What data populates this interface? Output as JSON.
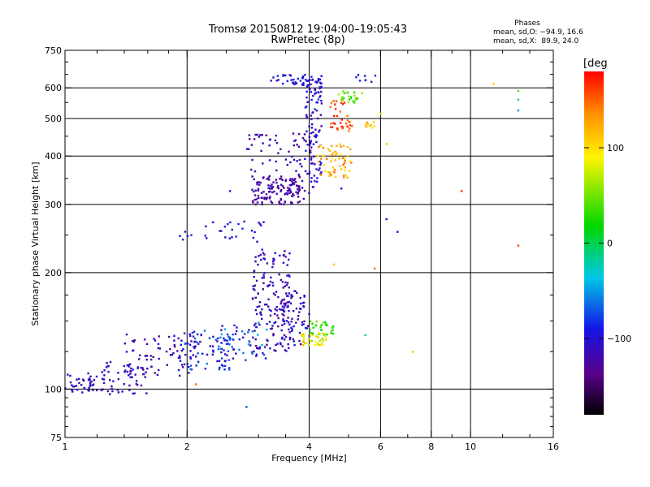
{
  "chart_data": {
    "type": "scatter",
    "title": "Tromsø 20150812 19:04:00–19:05:43",
    "subtitle": "RwPretec (8p)",
    "xlabel": "Frequency [MHz]",
    "ylabel": "Stationary phase Virtual Height [km]",
    "x_scale": "log",
    "y_scale": "log",
    "xlim": [
      1,
      16
    ],
    "ylim": [
      75,
      750
    ],
    "x_ticks": [
      1,
      2,
      4,
      6,
      8,
      10,
      16
    ],
    "x_tick_labels": [
      "1",
      "2",
      "4",
      "6",
      "8",
      "10",
      "16"
    ],
    "x_gridlines": [
      2,
      4,
      6,
      8,
      10
    ],
    "y_ticks": [
      75,
      100,
      200,
      300,
      400,
      500,
      600,
      750
    ],
    "y_tick_labels": [
      "75",
      "100",
      "200",
      "300",
      "400",
      "500",
      "600",
      "750"
    ],
    "y_gridlines": [
      100,
      200,
      300,
      400,
      500,
      600
    ],
    "grid": true,
    "colorbar": {
      "label": "[deg",
      "min": -180,
      "max": 180,
      "ticks": [
        100,
        0,
        -100
      ],
      "tick_labels": [
        "100",
        "0",
        "−100"
      ],
      "colormap": "rainbow"
    },
    "annotation": {
      "title": "Phases",
      "line1": "mean, sd,O: −94.9, 16.6",
      "line2": "mean, sd,X:  89.9, 24.0"
    },
    "clusters": [
      {
        "x": [
          1.0,
          1.18
        ],
        "y": [
          97,
          110
        ],
        "phase": [
          -120,
          -95
        ],
        "n": 35
      },
      {
        "x": [
          1.15,
          1.6
        ],
        "y": [
          97,
          118
        ],
        "phase": [
          -130,
          -100
        ],
        "n": 55
      },
      {
        "x": [
          1.4,
          2.1
        ],
        "y": [
          108,
          140
        ],
        "phase": [
          -135,
          -90
        ],
        "n": 75
      },
      {
        "x": [
          1.9,
          2.6
        ],
        "y": [
          112,
          142
        ],
        "phase": [
          -125,
          -60
        ],
        "n": 75
      },
      {
        "x": [
          2.4,
          3.2
        ],
        "y": [
          118,
          150
        ],
        "phase": [
          -115,
          -40
        ],
        "n": 55
      },
      {
        "x": [
          2.9,
          3.6
        ],
        "y": [
          125,
          230
        ],
        "phase": [
          -130,
          -95
        ],
        "n": 150
      },
      {
        "x": [
          3.4,
          4.0
        ],
        "y": [
          130,
          180
        ],
        "phase": [
          -130,
          -90
        ],
        "n": 70
      },
      {
        "x": [
          3.8,
          4.4
        ],
        "y": [
          130,
          140
        ],
        "phase": [
          60,
          120
        ],
        "n": 45
      },
      {
        "x": [
          4.0,
          4.6
        ],
        "y": [
          138,
          150
        ],
        "phase": [
          0,
          60
        ],
        "n": 30
      },
      {
        "x": [
          1.9,
          3.2
        ],
        "y": [
          240,
          272
        ],
        "phase": [
          -110,
          -80
        ],
        "n": 30
      },
      {
        "x": [
          2.9,
          3.9
        ],
        "y": [
          300,
          350
        ],
        "phase": [
          -140,
          -110
        ],
        "n": 110
      },
      {
        "x": [
          2.8,
          4.1
        ],
        "y": [
          320,
          460
        ],
        "phase": [
          -140,
          -100
        ],
        "n": 90
      },
      {
        "x": [
          3.9,
          4.3
        ],
        "y": [
          340,
          640
        ],
        "phase": [
          -125,
          -80
        ],
        "n": 95
      },
      {
        "x": [
          3.2,
          4.3
        ],
        "y": [
          610,
          650
        ],
        "phase": [
          -115,
          -80
        ],
        "n": 40
      },
      {
        "x": [
          4.2,
          5.1
        ],
        "y": [
          350,
          430
        ],
        "phase": [
          90,
          150
        ],
        "n": 60
      },
      {
        "x": [
          4.5,
          5.1
        ],
        "y": [
          460,
          560
        ],
        "phase": [
          140,
          175
        ],
        "n": 35
      },
      {
        "x": [
          4.7,
          5.5
        ],
        "y": [
          550,
          590
        ],
        "phase": [
          20,
          70
        ],
        "n": 25
      },
      {
        "x": [
          5.5,
          5.8
        ],
        "y": [
          470,
          490
        ],
        "phase": [
          95,
          130
        ],
        "n": 10
      },
      {
        "x": [
          5.2,
          5.9
        ],
        "y": [
          620,
          650
        ],
        "phase": [
          -110,
          -80
        ],
        "n": 8
      }
    ],
    "scattered_points": [
      {
        "x": 2.55,
        "y": 325,
        "phase": -90
      },
      {
        "x": 2.8,
        "y": 90,
        "phase": -70
      },
      {
        "x": 2.1,
        "y": 103,
        "phase": 150
      },
      {
        "x": 5.8,
        "y": 205,
        "phase": 150
      },
      {
        "x": 6.2,
        "y": 275,
        "phase": -110
      },
      {
        "x": 6.6,
        "y": 255,
        "phase": -110
      },
      {
        "x": 6.2,
        "y": 430,
        "phase": 110
      },
      {
        "x": 6.0,
        "y": 515,
        "phase": 80
      },
      {
        "x": 7.2,
        "y": 125,
        "phase": 110
      },
      {
        "x": 9.5,
        "y": 325,
        "phase": 165
      },
      {
        "x": 11.4,
        "y": 615,
        "phase": 110
      },
      {
        "x": 13.1,
        "y": 235,
        "phase": 160
      },
      {
        "x": 13.1,
        "y": 560,
        "phase": -20
      },
      {
        "x": 13.1,
        "y": 525,
        "phase": -50
      },
      {
        "x": 13.1,
        "y": 590,
        "phase": 40
      },
      {
        "x": 5.5,
        "y": 138,
        "phase": -20
      },
      {
        "x": 4.8,
        "y": 330,
        "phase": -90
      },
      {
        "x": 4.6,
        "y": 210,
        "phase": 110
      }
    ]
  }
}
